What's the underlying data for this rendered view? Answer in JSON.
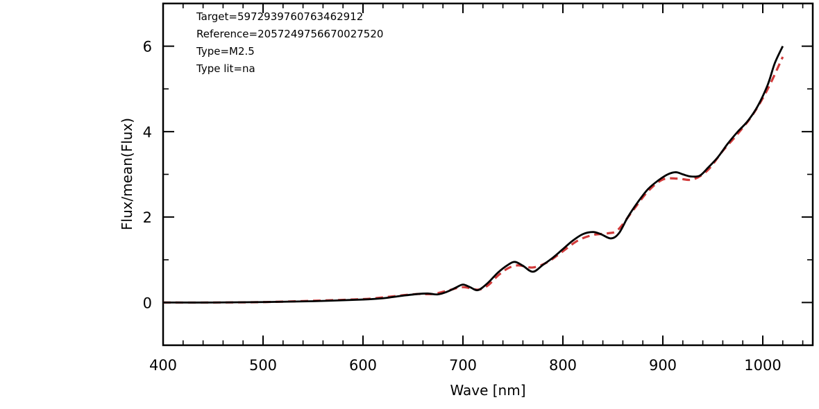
{
  "chart_data": {
    "type": "line",
    "title": "",
    "xlabel": "Wave [nm]",
    "ylabel": "Flux/mean(Flux)",
    "xlim": [
      400,
      1050
    ],
    "ylim": [
      -1,
      7
    ],
    "xticks": [
      400,
      500,
      600,
      700,
      800,
      900,
      1000
    ],
    "yticks": [
      0,
      2,
      4,
      6
    ],
    "grid": false,
    "legend": "none",
    "annotations": [
      "Target=5972939760763462912",
      "Reference=2057249756670027520",
      "Type=M2.5",
      "Type lit=na"
    ],
    "series": [
      {
        "color": "#000000",
        "style": "solid",
        "x": [
          400,
          450,
          500,
          550,
          600,
          620,
          640,
          655,
          665,
          675,
          685,
          693,
          700,
          707,
          715,
          725,
          735,
          745,
          752,
          760,
          770,
          780,
          790,
          800,
          810,
          820,
          830,
          838,
          848,
          856,
          865,
          875,
          885,
          895,
          905,
          913,
          920,
          928,
          937,
          945,
          955,
          965,
          975,
          985,
          995,
          1005,
          1012,
          1020
        ],
        "y": [
          0.0,
          0.0,
          0.01,
          0.03,
          0.07,
          0.1,
          0.16,
          0.2,
          0.21,
          0.19,
          0.26,
          0.35,
          0.42,
          0.36,
          0.29,
          0.46,
          0.7,
          0.88,
          0.95,
          0.86,
          0.72,
          0.88,
          1.05,
          1.25,
          1.45,
          1.6,
          1.65,
          1.6,
          1.5,
          1.62,
          2.0,
          2.35,
          2.65,
          2.85,
          3.0,
          3.05,
          3.0,
          2.95,
          2.97,
          3.15,
          3.4,
          3.72,
          4.0,
          4.25,
          4.6,
          5.1,
          5.6,
          6.0
        ]
      },
      {
        "color": "#d13b3b",
        "style": "dashed",
        "x": [
          400,
          450,
          500,
          550,
          600,
          620,
          640,
          655,
          670,
          685,
          700,
          715,
          725,
          735,
          745,
          755,
          770,
          785,
          800,
          815,
          830,
          845,
          855,
          870,
          885,
          900,
          915,
          930,
          945,
          960,
          975,
          990,
          1005,
          1020
        ],
        "y": [
          0.0,
          0.0,
          0.01,
          0.04,
          0.08,
          0.12,
          0.17,
          0.2,
          0.2,
          0.28,
          0.36,
          0.3,
          0.4,
          0.63,
          0.8,
          0.87,
          0.82,
          0.95,
          1.2,
          1.45,
          1.58,
          1.62,
          1.7,
          2.15,
          2.6,
          2.88,
          2.9,
          2.88,
          3.1,
          3.55,
          3.95,
          4.4,
          5.0,
          5.75
        ]
      }
    ]
  }
}
